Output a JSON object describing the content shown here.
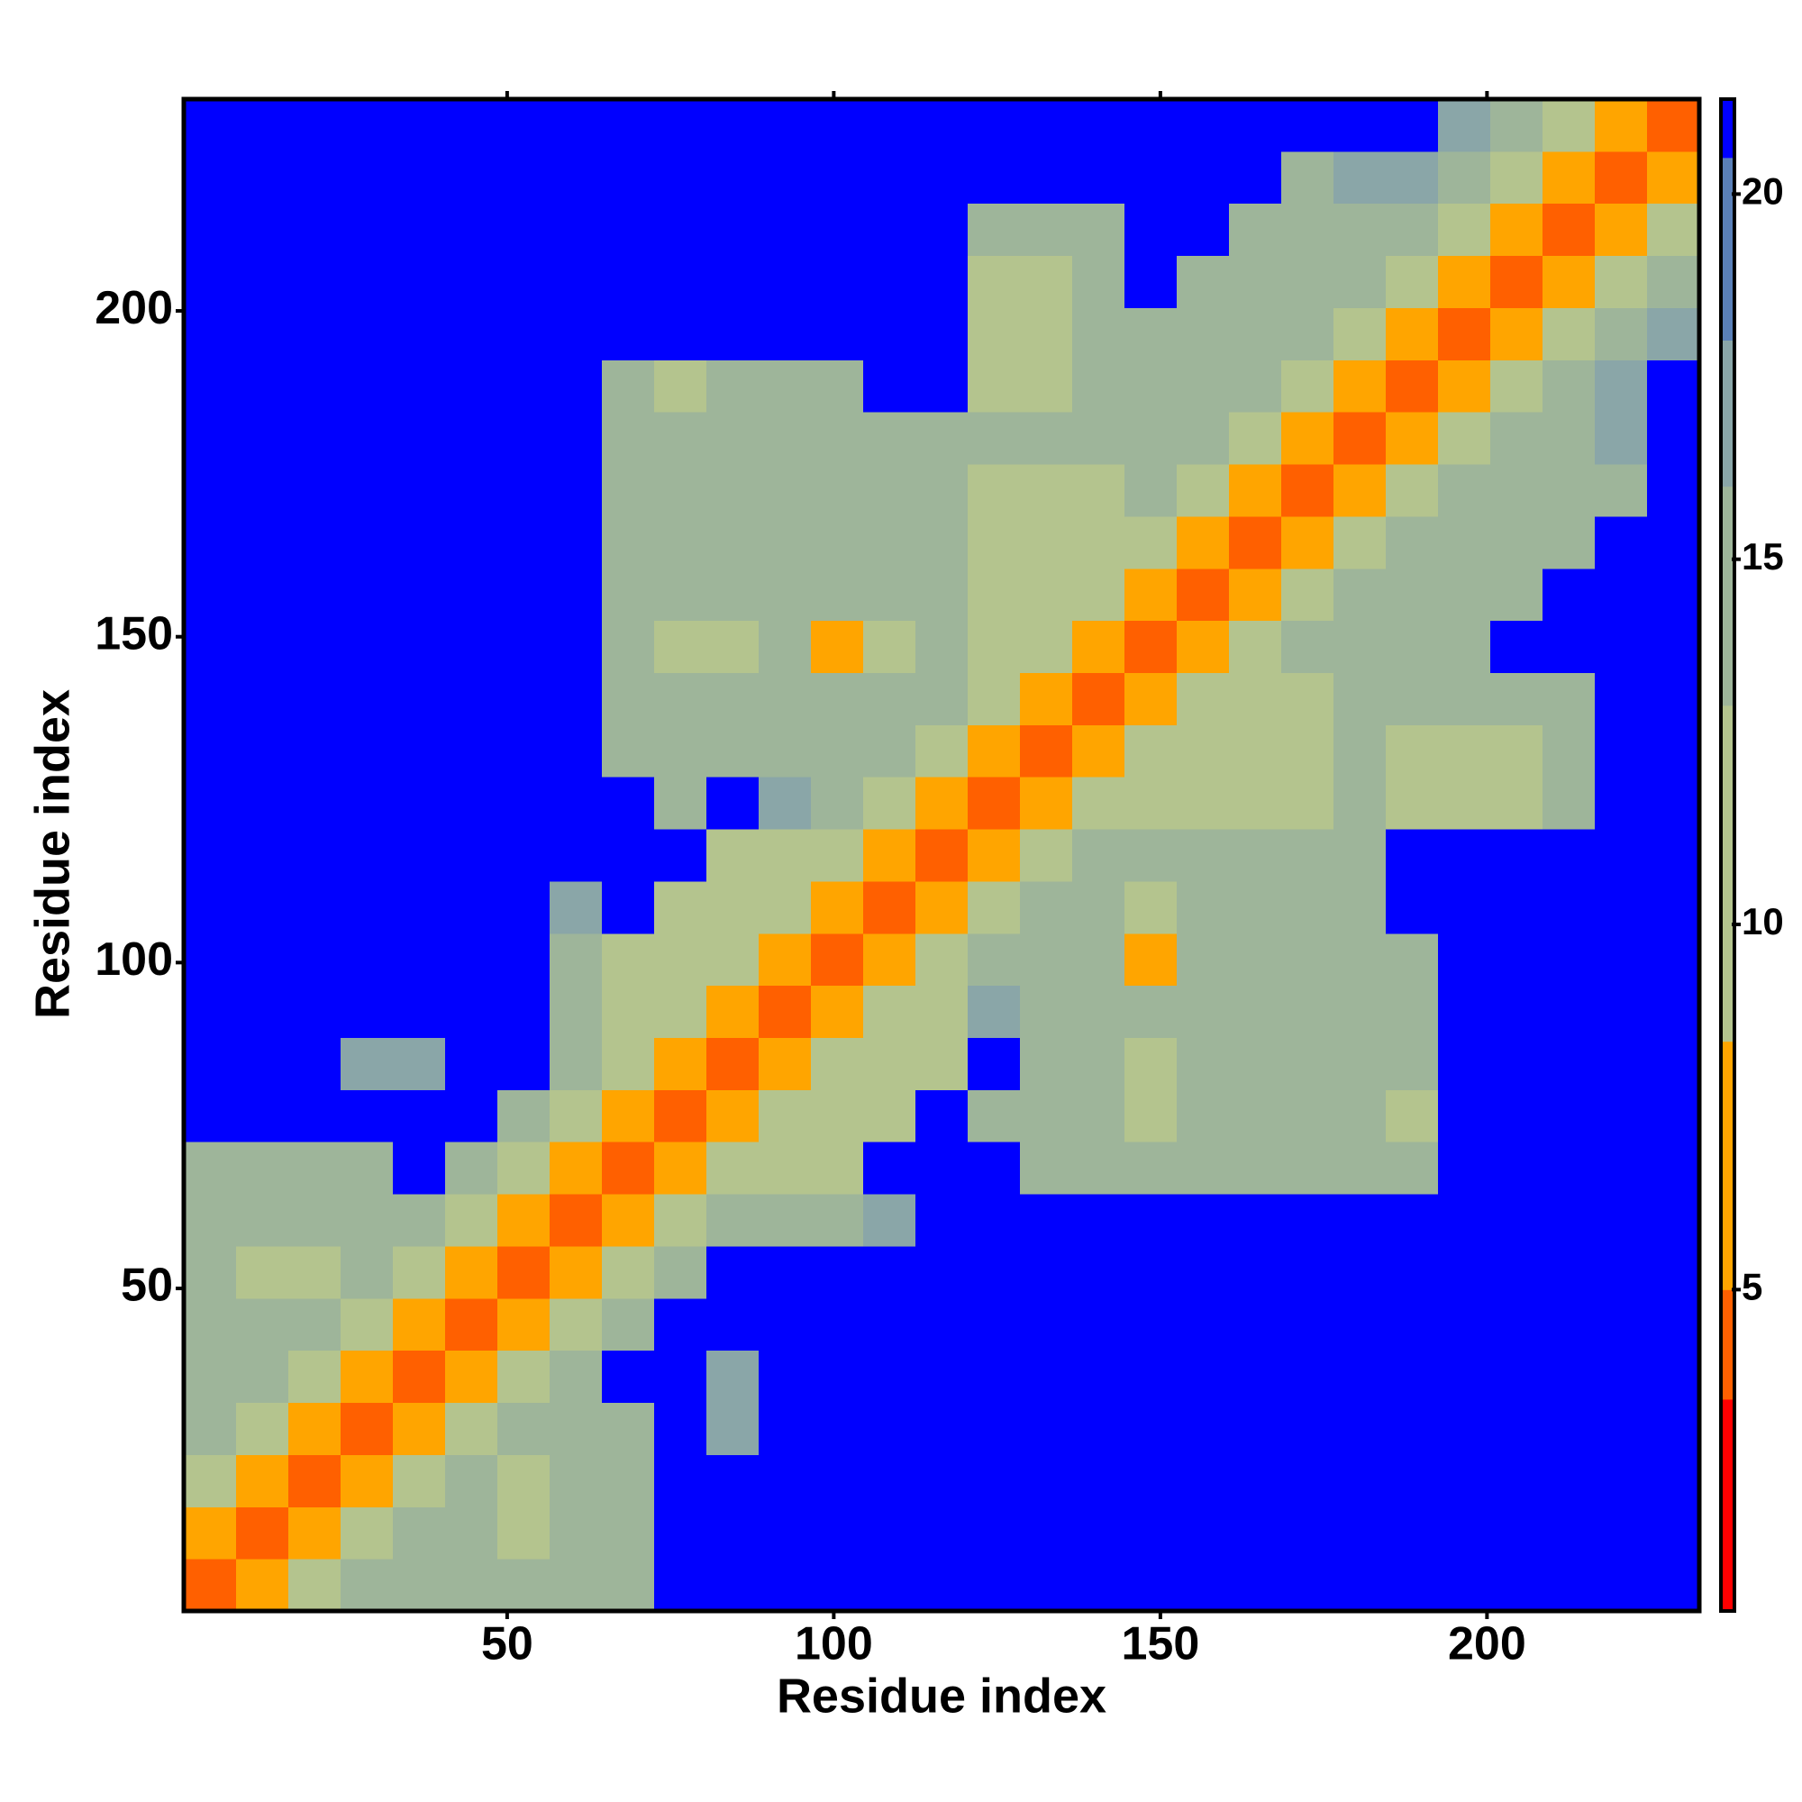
{
  "chart_data": {
    "type": "heatmap",
    "xlabel": "Residue index",
    "ylabel": "Residue index",
    "xbins": [
      0.5,
      8.5,
      16.5,
      24.5,
      32.5,
      40.5,
      48.5,
      56.5,
      64.5,
      72.5,
      80.5,
      88.5,
      96.5,
      104.5,
      112.5,
      120.5,
      128.5,
      136.5,
      144.5,
      152.5,
      160.5,
      168.5,
      176.5,
      184.5,
      192.5,
      200.5,
      208.5,
      216.5,
      224.5,
      232.5
    ],
    "ybins": [
      0.5,
      8.5,
      16.5,
      24.5,
      32.5,
      40.5,
      48.5,
      56.5,
      64.5,
      72.5,
      80.5,
      88.5,
      96.5,
      104.5,
      112.5,
      120.5,
      128.5,
      136.5,
      144.5,
      152.5,
      160.5,
      168.5,
      176.5,
      184.5,
      192.5,
      200.5,
      208.5,
      216.5,
      224.5,
      232.5
    ],
    "xlim": [
      0.5,
      232.5
    ],
    "ylim": [
      0.5,
      232.5
    ],
    "xticks": [
      50,
      100,
      150,
      200
    ],
    "yticks": [
      50,
      100,
      150,
      200
    ],
    "clim": [
      0.6,
      21.3
    ],
    "cticks": [
      5,
      10,
      15,
      20
    ],
    "colorscale": [
      [
        3.5,
        "#ff0000"
      ],
      [
        5,
        "#ff6000"
      ],
      [
        8.4,
        "#ffa500"
      ],
      [
        13,
        "#b4c48e"
      ],
      [
        16,
        "#9eb59a"
      ],
      [
        18,
        "#8aa6a8"
      ],
      [
        20.5,
        "#5a80b8"
      ],
      [
        21.3,
        "#0000ff"
      ]
    ],
    "values": [
      [
        3.8,
        8,
        13,
        15,
        14,
        14,
        14,
        14,
        14,
        21,
        21,
        21,
        21,
        21,
        21,
        21,
        21,
        21,
        21,
        21,
        21,
        21,
        21,
        21,
        21,
        21,
        21,
        21,
        21
      ],
      [
        8,
        3.8,
        8,
        13,
        14,
        14,
        11,
        14,
        14,
        21,
        21,
        21,
        21,
        21,
        21,
        21,
        21,
        21,
        21,
        21,
        21,
        21,
        21,
        21,
        21,
        21,
        21,
        21,
        21
      ],
      [
        13,
        8,
        3.8,
        8,
        13,
        14,
        11,
        14,
        14,
        21,
        21,
        21,
        21,
        21,
        21,
        21,
        21,
        21,
        21,
        21,
        21,
        21,
        21,
        21,
        21,
        21,
        21,
        21,
        21
      ],
      [
        15,
        13,
        8,
        3.8,
        8,
        13,
        14,
        14,
        14,
        21,
        17,
        21,
        21,
        21,
        21,
        21,
        21,
        21,
        21,
        21,
        21,
        21,
        21,
        21,
        21,
        21,
        21,
        21,
        21
      ],
      [
        14,
        14,
        13,
        8,
        3.8,
        8,
        13,
        15,
        21,
        21,
        17,
        21,
        21,
        21,
        21,
        21,
        21,
        21,
        21,
        21,
        21,
        21,
        21,
        21,
        21,
        21,
        21,
        21,
        21
      ],
      [
        14,
        14,
        14,
        13,
        8,
        3.8,
        8,
        13,
        15,
        21,
        21,
        21,
        21,
        21,
        21,
        21,
        21,
        21,
        21,
        21,
        21,
        21,
        21,
        21,
        21,
        21,
        21,
        21,
        21
      ],
      [
        14,
        11,
        11,
        14,
        13,
        8,
        3.8,
        8,
        13,
        15,
        21,
        21,
        21,
        21,
        21,
        21,
        21,
        21,
        21,
        21,
        21,
        21,
        21,
        21,
        21,
        21,
        21,
        21,
        21
      ],
      [
        14,
        14,
        14,
        14,
        15,
        13,
        8,
        3.8,
        8,
        13,
        15,
        15,
        15,
        17,
        21,
        21,
        21,
        21,
        21,
        21,
        21,
        21,
        21,
        21,
        21,
        21,
        21,
        21,
        21
      ],
      [
        14,
        14,
        14,
        14,
        21,
        15,
        13,
        8,
        3.8,
        8,
        13,
        12,
        12,
        21,
        21,
        21,
        15,
        15,
        15,
        15,
        15,
        15,
        15,
        14,
        21,
        21,
        21,
        21,
        21
      ],
      [
        21,
        21,
        21,
        21,
        21,
        21,
        15,
        13,
        8,
        3.8,
        8,
        13,
        12,
        12,
        21,
        15,
        15,
        15,
        9,
        15,
        15,
        15,
        14,
        10,
        21,
        21,
        21,
        21,
        21
      ],
      [
        21,
        21,
        21,
        17,
        17,
        21,
        21,
        15,
        13,
        8,
        3.8,
        8,
        13,
        12,
        12,
        21,
        15,
        15,
        12,
        15,
        15,
        15,
        15,
        15,
        21,
        21,
        21,
        21,
        21
      ],
      [
        21,
        21,
        21,
        21,
        21,
        21,
        21,
        15,
        12,
        13,
        8,
        3.8,
        8,
        13,
        12,
        17,
        15,
        14,
        14,
        14,
        14,
        14,
        15,
        15,
        21,
        21,
        21,
        21,
        21
      ],
      [
        21,
        21,
        21,
        21,
        21,
        21,
        21,
        15,
        12,
        12,
        13,
        8,
        3.8,
        8,
        9,
        15,
        15,
        14,
        8,
        14,
        14,
        14,
        15,
        15,
        21,
        21,
        21,
        21,
        21
      ],
      [
        21,
        21,
        21,
        21,
        21,
        21,
        21,
        17,
        21,
        12,
        12,
        13,
        8,
        3.8,
        8,
        13,
        15,
        14,
        12,
        14,
        14,
        14,
        14,
        21,
        21,
        21,
        21,
        21,
        21
      ],
      [
        21,
        21,
        21,
        21,
        21,
        21,
        21,
        21,
        21,
        21,
        12,
        12,
        9,
        8,
        3.8,
        8,
        13,
        15,
        14,
        14,
        14,
        14,
        14,
        21,
        21,
        21,
        21,
        21,
        21
      ],
      [
        21,
        21,
        21,
        21,
        21,
        21,
        21,
        21,
        21,
        15,
        21,
        17,
        15,
        13,
        8,
        3.8,
        8,
        13,
        13,
        13,
        13,
        13,
        14,
        13,
        10,
        13,
        14,
        21,
        21
      ],
      [
        21,
        21,
        21,
        21,
        21,
        21,
        21,
        21,
        15,
        15,
        15,
        15,
        15,
        15,
        13,
        8,
        3.8,
        8,
        13,
        10,
        13,
        13,
        14,
        13,
        11,
        13,
        14,
        21,
        21
      ],
      [
        21,
        21,
        21,
        21,
        21,
        21,
        21,
        21,
        15,
        15,
        15,
        14,
        14,
        14,
        15,
        13,
        8,
        3.8,
        8,
        13,
        13,
        13,
        14,
        14,
        14,
        14,
        14,
        21,
        21
      ],
      [
        21,
        21,
        21,
        21,
        21,
        21,
        21,
        21,
        15,
        9,
        12,
        14,
        8,
        12,
        14,
        13,
        13,
        8,
        3.8,
        8,
        13,
        14,
        14,
        14,
        14,
        21,
        21,
        21,
        21
      ],
      [
        21,
        21,
        21,
        21,
        21,
        21,
        21,
        21,
        15,
        15,
        15,
        14,
        14,
        14,
        14,
        13,
        10,
        13,
        8,
        3.8,
        8,
        13,
        14,
        14,
        14,
        14,
        21,
        21,
        21
      ],
      [
        21,
        21,
        21,
        21,
        21,
        21,
        21,
        21,
        15,
        15,
        15,
        14,
        14,
        14,
        14,
        13,
        13,
        13,
        13,
        8,
        3.8,
        8,
        13,
        14,
        14,
        14,
        14,
        21,
        21
      ],
      [
        21,
        21,
        21,
        21,
        21,
        21,
        21,
        21,
        15,
        15,
        15,
        14,
        14,
        14,
        14,
        13,
        13,
        13,
        14,
        13,
        8,
        3.8,
        8,
        13,
        14,
        15,
        14,
        14,
        21
      ],
      [
        21,
        21,
        21,
        21,
        21,
        21,
        21,
        21,
        15,
        14,
        15,
        15,
        15,
        14,
        14,
        14,
        14,
        14,
        14,
        14,
        13,
        8,
        3.8,
        8,
        13,
        15,
        14,
        17,
        21
      ],
      [
        21,
        21,
        21,
        21,
        21,
        21,
        21,
        21,
        14,
        10,
        15,
        15,
        15,
        21,
        21,
        13,
        13,
        14,
        14,
        14,
        14,
        13,
        8,
        3.8,
        8,
        13,
        15,
        17,
        21
      ],
      [
        21,
        21,
        21,
        21,
        21,
        21,
        21,
        21,
        21,
        21,
        21,
        21,
        21,
        21,
        21,
        10,
        11,
        14,
        14,
        14,
        14,
        14,
        13,
        8,
        3.8,
        8,
        13,
        15,
        17
      ],
      [
        21,
        21,
        21,
        21,
        21,
        21,
        21,
        21,
        21,
        21,
        21,
        21,
        21,
        21,
        21,
        13,
        13,
        14,
        21,
        14,
        14,
        15,
        15,
        13,
        8,
        3.8,
        8,
        13,
        15
      ],
      [
        21,
        21,
        21,
        21,
        21,
        21,
        21,
        21,
        21,
        21,
        21,
        21,
        21,
        21,
        21,
        14,
        14,
        14,
        21,
        21,
        14,
        14,
        14,
        15,
        13,
        8,
        3.8,
        8,
        13
      ],
      [
        21,
        21,
        21,
        21,
        21,
        21,
        21,
        21,
        21,
        21,
        21,
        21,
        21,
        21,
        21,
        21,
        21,
        21,
        21,
        21,
        21,
        14,
        17,
        17,
        15,
        13,
        8,
        3.8,
        8
      ],
      [
        21,
        21,
        21,
        21,
        21,
        21,
        21,
        21,
        21,
        21,
        21,
        21,
        21,
        21,
        21,
        21,
        21,
        21,
        21,
        21,
        21,
        21,
        21,
        21,
        17,
        15,
        13,
        8,
        3.8
      ]
    ]
  }
}
